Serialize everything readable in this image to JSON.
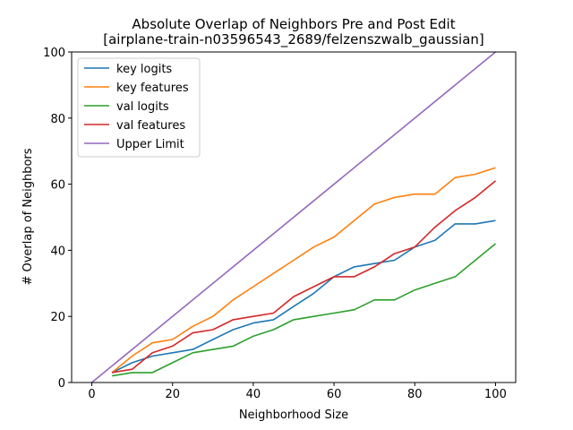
{
  "chart_data": {
    "type": "line",
    "title": "Absolute Overlap of Neighbors Pre and Post Edit",
    "subtitle": "[airplane-train-n03596543_2689/felzenszwalb_gaussian]",
    "xlabel": "Neighborhood Size",
    "ylabel": "# Overlap of Neighbors",
    "xlim": [
      -5,
      105
    ],
    "ylim": [
      0,
      100
    ],
    "xticks": [
      0,
      20,
      40,
      60,
      80,
      100
    ],
    "yticks": [
      0,
      20,
      40,
      60,
      80,
      100
    ],
    "grid": false,
    "legend_position": "top-left",
    "x": [
      5,
      10,
      15,
      20,
      25,
      30,
      35,
      40,
      45,
      50,
      55,
      60,
      65,
      70,
      75,
      80,
      85,
      90,
      95,
      100
    ],
    "series": [
      {
        "name": "key logits",
        "color": "#1f77b4",
        "values": [
          3,
          6,
          8,
          9,
          10,
          13,
          16,
          18,
          19,
          23,
          27,
          32,
          35,
          36,
          37,
          41,
          43,
          48,
          48,
          49
        ]
      },
      {
        "name": "key features",
        "color": "#ff7f0e",
        "values": [
          3,
          8,
          12,
          13,
          17,
          20,
          25,
          29,
          33,
          37,
          41,
          44,
          49,
          54,
          56,
          57,
          57,
          62,
          63,
          65
        ]
      },
      {
        "name": "val logits",
        "color": "#2ca02c",
        "values": [
          2,
          3,
          3,
          6,
          9,
          10,
          11,
          14,
          16,
          19,
          20,
          21,
          22,
          25,
          25,
          28,
          30,
          32,
          37,
          42
        ]
      },
      {
        "name": "val features",
        "color": "#d62728",
        "values": [
          3,
          4,
          9,
          11,
          15,
          16,
          19,
          20,
          21,
          26,
          29,
          32,
          32,
          35,
          39,
          41,
          47,
          52,
          56,
          61
        ]
      },
      {
        "name": "Upper Limit",
        "color": "#9467bd",
        "x": [
          0,
          100
        ],
        "values": [
          0,
          100
        ]
      }
    ]
  }
}
